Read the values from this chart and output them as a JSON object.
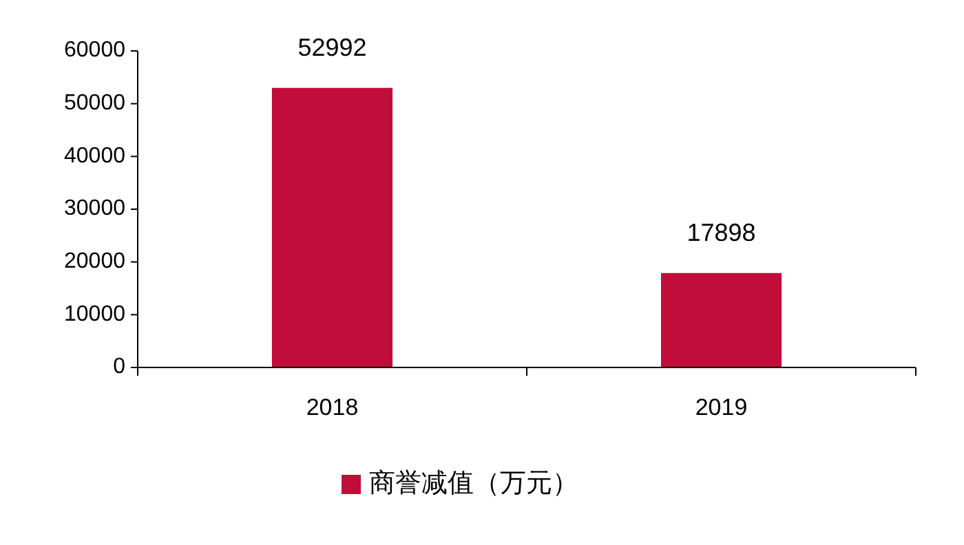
{
  "chart_data": {
    "type": "bar",
    "categories": [
      "2018",
      "2019"
    ],
    "series": [
      {
        "name": "商誉减值（万元）",
        "color": "#c00d3a",
        "values": [
          52992,
          17898
        ]
      }
    ],
    "ylim": [
      0,
      60000
    ],
    "yticks": [
      0,
      10000,
      20000,
      30000,
      40000,
      50000,
      60000
    ],
    "data_labels": true,
    "grid": false,
    "legend": "bottom"
  }
}
